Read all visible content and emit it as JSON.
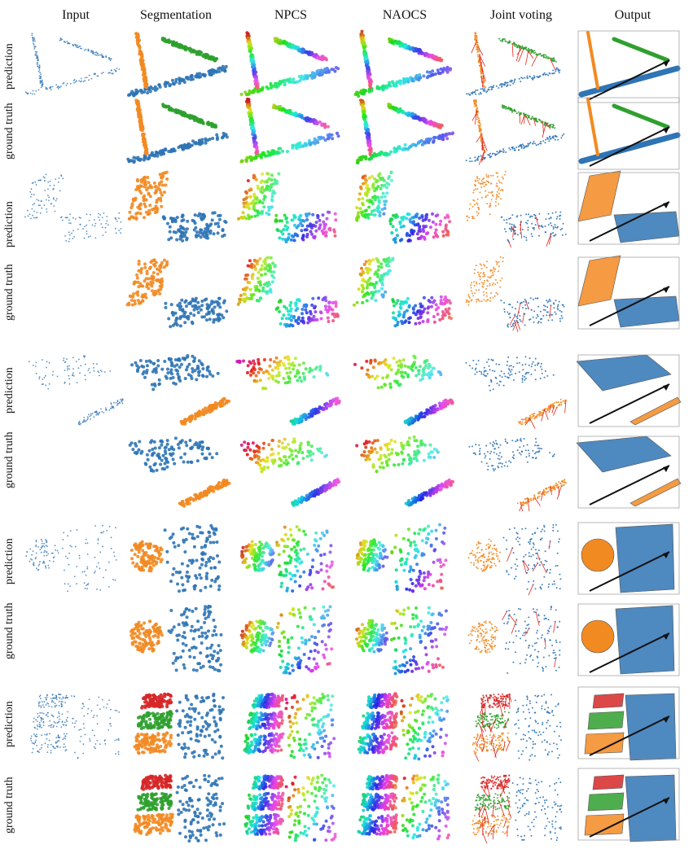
{
  "columns": [
    "Input",
    "Segmentation",
    "NPCS",
    "NAOCS",
    "Joint voting",
    "Output"
  ],
  "row_labels": [
    "prediction",
    "ground truth",
    "prediction",
    "ground truth",
    "prediction",
    "ground truth",
    "prediction",
    "ground truth",
    "prediction",
    "ground truth"
  ],
  "colors": {
    "part_blue": "#2f74b5",
    "part_orange": "#f28a22",
    "part_green": "#2fa02f",
    "part_red": "#d62728",
    "arrow_red": "#e0261f",
    "axis_black": "#111111"
  },
  "icons": [
    "point-cloud-thumbnail",
    "segmentation-thumbnail",
    "npcs-thumbnail",
    "naocs-thumbnail",
    "joint-voting-thumbnail",
    "articulated-output-thumbnail"
  ]
}
